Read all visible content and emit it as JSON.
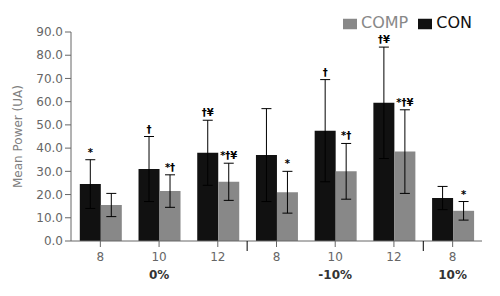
{
  "chart_data": {
    "type": "bar",
    "categories": [
      "8",
      "10",
      "12",
      "8",
      "10",
      "12",
      "8"
    ],
    "category_groups": [
      "0%",
      "0%",
      "0%",
      "-10%",
      "-10%",
      "-10%",
      "10%"
    ],
    "series": [
      {
        "name": "CON",
        "color": "#111111",
        "values": [
          24.5,
          31.0,
          38.0,
          37.0,
          47.5,
          59.5,
          18.5
        ],
        "errors": [
          10.5,
          14.0,
          14.0,
          20.0,
          22.0,
          24.0,
          5.0
        ],
        "annotations": [
          "*",
          "†",
          "†¥",
          null,
          "†",
          "†¥",
          null
        ]
      },
      {
        "name": "COMP",
        "color": "#888888",
        "values": [
          15.5,
          21.5,
          25.5,
          21.0,
          30.0,
          38.5,
          13.0
        ],
        "errors": [
          5.0,
          7.0,
          8.0,
          9.0,
          12.0,
          18.0,
          4.0
        ],
        "annotations": [
          null,
          "*†",
          "*†¥",
          "*",
          "*†",
          "*†¥",
          "*"
        ]
      }
    ],
    "ylabel": "Mean Power (UA)",
    "ylim": [
      0.0,
      90.0
    ],
    "yticks": [
      {
        "value": 0,
        "label": "0.0"
      },
      {
        "value": 10,
        "label": "10.0"
      },
      {
        "value": 20,
        "label": "20.0"
      },
      {
        "value": 30,
        "label": "30.0"
      },
      {
        "value": 40,
        "label": "40.0"
      },
      {
        "value": 50,
        "label": "50.0"
      },
      {
        "value": 60,
        "label": "60.0"
      },
      {
        "value": 70,
        "label": "70.0"
      },
      {
        "value": 80,
        "label": "80.0"
      },
      {
        "value": 90,
        "label": "90.0"
      }
    ],
    "grid": false,
    "legend": "upper right"
  }
}
